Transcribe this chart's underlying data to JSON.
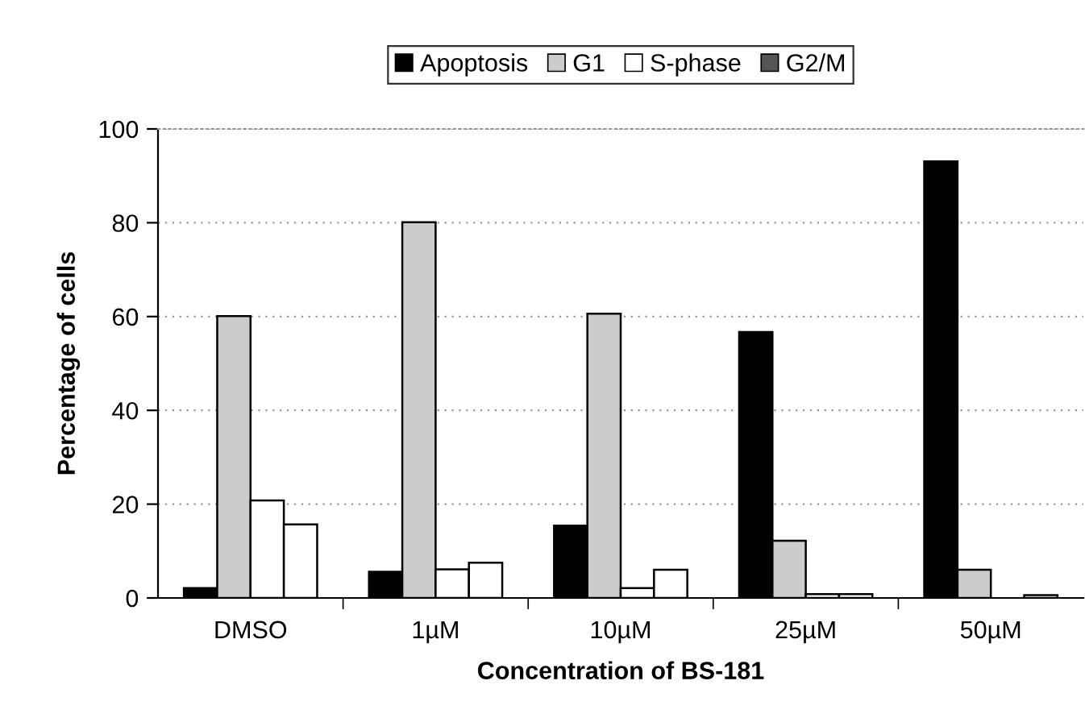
{
  "chart_data": {
    "type": "bar",
    "xlabel": "Concentration of BS-181",
    "ylabel": "Percentage of cells",
    "categories": [
      "DMSO",
      "1µM",
      "10µM",
      "25µM",
      "50µM"
    ],
    "series": [
      {
        "name": "Apoptosis",
        "color": "#000000",
        "values": [
          2.1,
          5.6,
          15.4,
          56.7,
          93.1
        ]
      },
      {
        "name": "G1",
        "color": "#cccccc",
        "values": [
          60.1,
          80.1,
          60.6,
          12.2,
          6.0
        ]
      },
      {
        "name": "S-phase",
        "color": "#ffffff",
        "values": [
          20.8,
          6.1,
          2.1,
          0.8,
          null
        ]
      },
      {
        "name": "G2/M",
        "color": "#555555",
        "colors": [
          "#ffffff",
          "#ffffff",
          "#ffffff",
          "#ffffff",
          "#ffffff"
        ],
        "values": [
          15.7,
          7.5,
          6.0,
          0.8,
          0.6
        ]
      }
    ],
    "ylim": [
      0,
      100
    ],
    "yticks": [
      0,
      20,
      40,
      60,
      80,
      100
    ],
    "grid": "y",
    "legend": "top"
  }
}
